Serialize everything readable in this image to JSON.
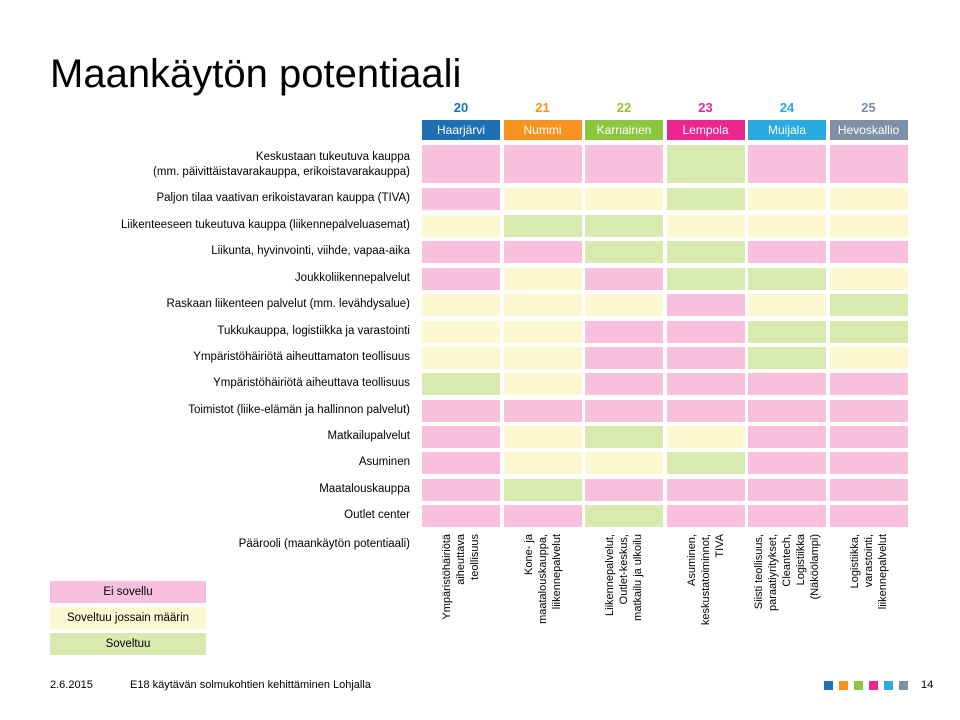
{
  "title": "Maankäytön potentiaali",
  "colors": {
    "ei_sovellu": "#f9c0dd",
    "jossain": "#fdf8d1",
    "soveltuu": "#d9eaae"
  },
  "columns": [
    {
      "num": "20",
      "name": "Haarjärvi",
      "color": "#1f6fb5",
      "role": "Ympäristöhäiriötä\naiheuttava\nteollisuus"
    },
    {
      "num": "21",
      "name": "Nummi",
      "color": "#f7931e",
      "role": "Kone- ja\nmaatalouskauppa,\nliikennepalvelut"
    },
    {
      "num": "22",
      "name": "Karnainen",
      "color": "#8cc63f",
      "role": "Liikennepalvelut,\nOutlet-keskus,\nmatkailu ja ulkoilu"
    },
    {
      "num": "23",
      "name": "Lempola",
      "color": "#ec268f",
      "role": "Asuminen,\nkeskustatoiminnot,\nTIVA"
    },
    {
      "num": "24",
      "name": "Muijala",
      "color": "#29abe2",
      "role": "Siisti teollisuus,\nparaatiyritykset,\nCleantech, Logistiikka\n(Näköölampi)"
    },
    {
      "num": "25",
      "name": "Hevoskallio",
      "color": "#7f8fa6",
      "role": "Logistiikka,\nvarastointi,\nliikennepalvelut"
    }
  ],
  "rows": [
    {
      "label": "Keskustaan tukeutuva kauppa\n(mm. päivittäistavarakauppa, erikoistavarakauppa)",
      "values": [
        "E",
        "E",
        "E",
        "S",
        "E",
        "E"
      ]
    },
    {
      "label": "Paljon tilaa vaativan erikoistavaran kauppa (TIVA)",
      "values": [
        "E",
        "J",
        "J",
        "S",
        "J",
        "J"
      ]
    },
    {
      "label": "Liikenteeseen tukeutuva kauppa (liikennepalveluasemat)",
      "values": [
        "J",
        "S",
        "S",
        "J",
        "J",
        "J"
      ]
    },
    {
      "label": "Liikunta, hyvinvointi, viihde, vapaa-aika",
      "values": [
        "E",
        "E",
        "S",
        "S",
        "E",
        "E"
      ]
    },
    {
      "label": "Joukkoliikennepalvelut",
      "values": [
        "E",
        "J",
        "E",
        "S",
        "S",
        "J"
      ]
    },
    {
      "label": "Raskaan liikenteen palvelut (mm. levähdysalue)",
      "values": [
        "J",
        "J",
        "J",
        "E",
        "J",
        "S"
      ]
    },
    {
      "label": "Tukkukauppa, logistiikka ja varastointi",
      "values": [
        "J",
        "J",
        "E",
        "E",
        "S",
        "S"
      ]
    },
    {
      "label": "Ympäristöhäiriötä aiheuttamaton teollisuus",
      "values": [
        "J",
        "J",
        "E",
        "E",
        "S",
        "J"
      ]
    },
    {
      "label": "Ympäristöhäiriötä aiheuttava teollisuus",
      "values": [
        "S",
        "J",
        "E",
        "E",
        "E",
        "E"
      ]
    },
    {
      "label": "Toimistot (liike-elämän ja hallinnon palvelut)",
      "values": [
        "E",
        "E",
        "E",
        "E",
        "E",
        "E"
      ]
    },
    {
      "label": "Matkailupalvelut",
      "values": [
        "E",
        "J",
        "S",
        "J",
        "E",
        "E"
      ]
    },
    {
      "label": "Asuminen",
      "values": [
        "E",
        "J",
        "J",
        "S",
        "E",
        "E"
      ]
    },
    {
      "label": "Maatalouskauppa",
      "values": [
        "E",
        "S",
        "E",
        "E",
        "E",
        "E"
      ]
    },
    {
      "label": "Outlet center",
      "values": [
        "E",
        "E",
        "S",
        "E",
        "E",
        "E"
      ]
    }
  ],
  "role_label": "Päärooli (maankäytön potentiaali)",
  "legend": [
    {
      "key": "E",
      "label": "Ei sovellu"
    },
    {
      "key": "J",
      "label": "Soveltuu jossain määrin"
    },
    {
      "key": "S",
      "label": "Soveltuu"
    }
  ],
  "footer": {
    "date": "2.6.2015",
    "text": "E18 käytävän solmukohtien kehittäminen Lohjalla",
    "page": "14",
    "squares": [
      "#1f6fb5",
      "#f7931e",
      "#8cc63f",
      "#ec268f",
      "#29abe2",
      "#7f8fa6"
    ]
  }
}
